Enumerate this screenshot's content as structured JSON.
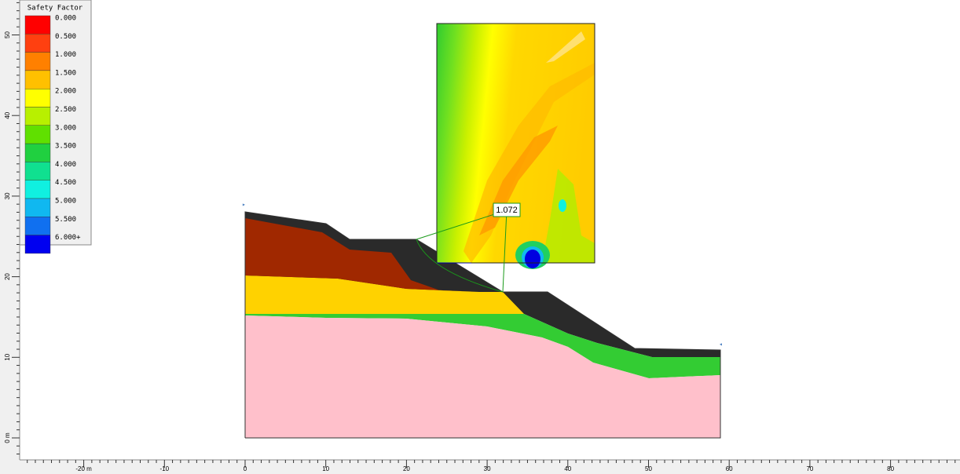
{
  "legend": {
    "title": "Safety Factor",
    "entries": [
      {
        "label": "0.000",
        "color": "#ff0000"
      },
      {
        "label": "0.500",
        "color": "#ff4010"
      },
      {
        "label": "1.000",
        "color": "#ff8000"
      },
      {
        "label": "1.500",
        "color": "#ffc000"
      },
      {
        "label": "2.000",
        "color": "#ffff00"
      },
      {
        "label": "2.500",
        "color": "#b8f000"
      },
      {
        "label": "3.000",
        "color": "#60e000"
      },
      {
        "label": "3.500",
        "color": "#20d040"
      },
      {
        "label": "4.000",
        "color": "#10e090"
      },
      {
        "label": "4.500",
        "color": "#10f0e0"
      },
      {
        "label": "5.000",
        "color": "#10b8f0"
      },
      {
        "label": "5.500",
        "color": "#1070f0"
      },
      {
        "label": "6.000+",
        "color": "#0000f0"
      }
    ]
  },
  "rulers": {
    "x_labels": [
      "-20 m",
      "-10",
      "0",
      "10",
      "20",
      "30",
      "40",
      "50",
      "60",
      "70",
      "80"
    ],
    "y_labels": [
      "0 m",
      "10",
      "20",
      "30",
      "40",
      "50"
    ]
  },
  "critical_slip": {
    "factor_label": "1.072"
  }
}
